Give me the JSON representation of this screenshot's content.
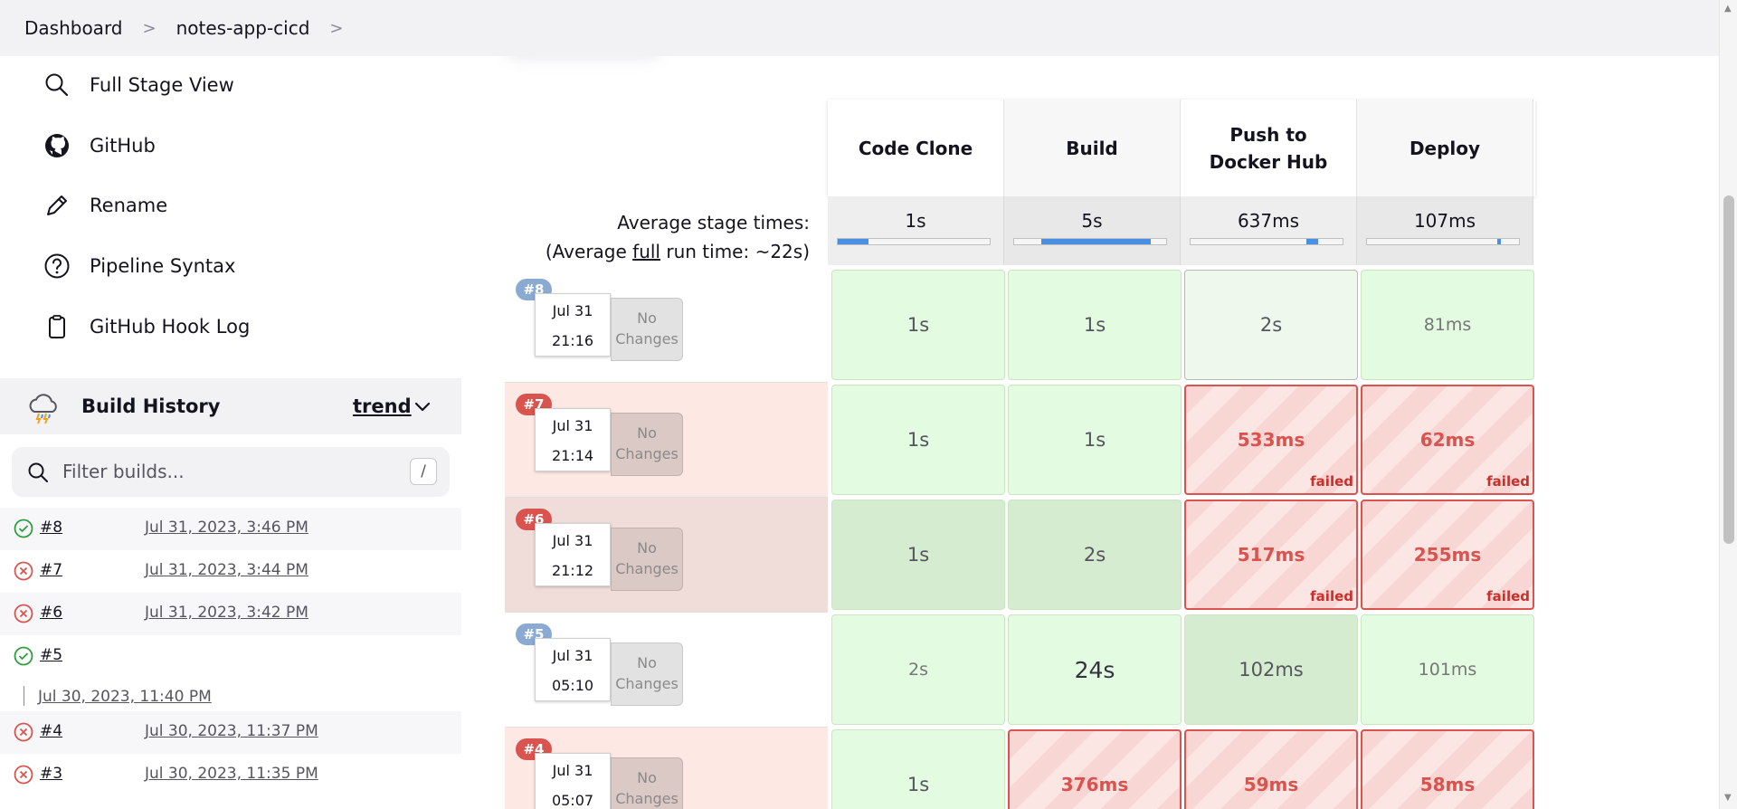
{
  "breadcrumb": {
    "items": [
      "Dashboard",
      "notes-app-cicd"
    ],
    "separator": ">"
  },
  "sidebar": {
    "tasks": [
      {
        "label": "Full Stage View",
        "icon": "search-icon"
      },
      {
        "label": "GitHub",
        "icon": "github-icon"
      },
      {
        "label": "Rename",
        "icon": "pencil-icon"
      },
      {
        "label": "Pipeline Syntax",
        "icon": "help-circle-icon"
      },
      {
        "label": "GitHub Hook Log",
        "icon": "clipboard-icon"
      }
    ]
  },
  "build_history": {
    "title": "Build History",
    "trend_label": "trend",
    "filter_placeholder": "Filter builds...",
    "filter_shortcut": "/",
    "builds": [
      {
        "number": "#8",
        "date": "Jul 31, 2023, 3:46 PM",
        "status": "success"
      },
      {
        "number": "#7",
        "date": "Jul 31, 2023, 3:44 PM",
        "status": "failed"
      },
      {
        "number": "#6",
        "date": "Jul 31, 2023, 3:42 PM",
        "status": "failed"
      },
      {
        "number": "#5",
        "date": "Jul 30, 2023, 11:40 PM",
        "status": "success"
      },
      {
        "number": "#4",
        "date": "Jul 30, 2023, 11:37 PM",
        "status": "failed"
      },
      {
        "number": "#3",
        "date": "Jul 30, 2023, 11:35 PM",
        "status": "failed"
      }
    ]
  },
  "stage_view": {
    "stages": [
      "Code Clone",
      "Build",
      "Push to Docker Hub",
      "Deploy"
    ],
    "average_label": "Average stage times:",
    "average_full_prefix": "(Average ",
    "average_full_word": "full",
    "average_full_suffix": " run time: ~22s)",
    "average_times": [
      "1s",
      "5s",
      "637ms",
      "107ms"
    ],
    "average_bar_fill": [
      0.2,
      0.72,
      0.08,
      0.02
    ],
    "failed_label": "failed",
    "no_changes_line1": "No",
    "no_changes_line2": "Changes",
    "runs": [
      {
        "badge": "#8",
        "date": "Jul 31",
        "time": "21:16",
        "status": "success",
        "cells": [
          {
            "v": "1s",
            "s": "ok"
          },
          {
            "v": "1s",
            "s": "ok"
          },
          {
            "v": "2s",
            "s": "pale"
          },
          {
            "v": "81ms",
            "s": "ok"
          }
        ]
      },
      {
        "badge": "#7",
        "date": "Jul 31",
        "time": "21:14",
        "status": "failed",
        "cells": [
          {
            "v": "1s",
            "s": "ok"
          },
          {
            "v": "1s",
            "s": "ok"
          },
          {
            "v": "533ms",
            "s": "failed"
          },
          {
            "v": "62ms",
            "s": "failed"
          }
        ]
      },
      {
        "badge": "#6",
        "date": "Jul 31",
        "time": "21:12",
        "status": "failed",
        "cells": [
          {
            "v": "1s",
            "s": "dark"
          },
          {
            "v": "2s",
            "s": "dark"
          },
          {
            "v": "517ms",
            "s": "failed"
          },
          {
            "v": "255ms",
            "s": "failed"
          }
        ]
      },
      {
        "badge": "#5",
        "date": "Jul 31",
        "time": "05:10",
        "status": "success",
        "cells": [
          {
            "v": "2s",
            "s": "ok"
          },
          {
            "v": "24s",
            "s": "big"
          },
          {
            "v": "102ms",
            "s": "dark"
          },
          {
            "v": "101ms",
            "s": "ok"
          }
        ]
      },
      {
        "badge": "#4",
        "date": "Jul 31",
        "time": "05:07",
        "status": "failed",
        "cells": [
          {
            "v": "1s",
            "s": "ok"
          },
          {
            "v": "376ms",
            "s": "failed"
          },
          {
            "v": "59ms",
            "s": "failed"
          },
          {
            "v": "58ms",
            "s": "failed"
          }
        ]
      }
    ]
  },
  "colors": {
    "success": "#2e9e3e",
    "failure": "#d9534f",
    "badge_success": "#8aaad2",
    "cell_success": "#e3fbe0",
    "progress_blue": "#4a90e2"
  }
}
